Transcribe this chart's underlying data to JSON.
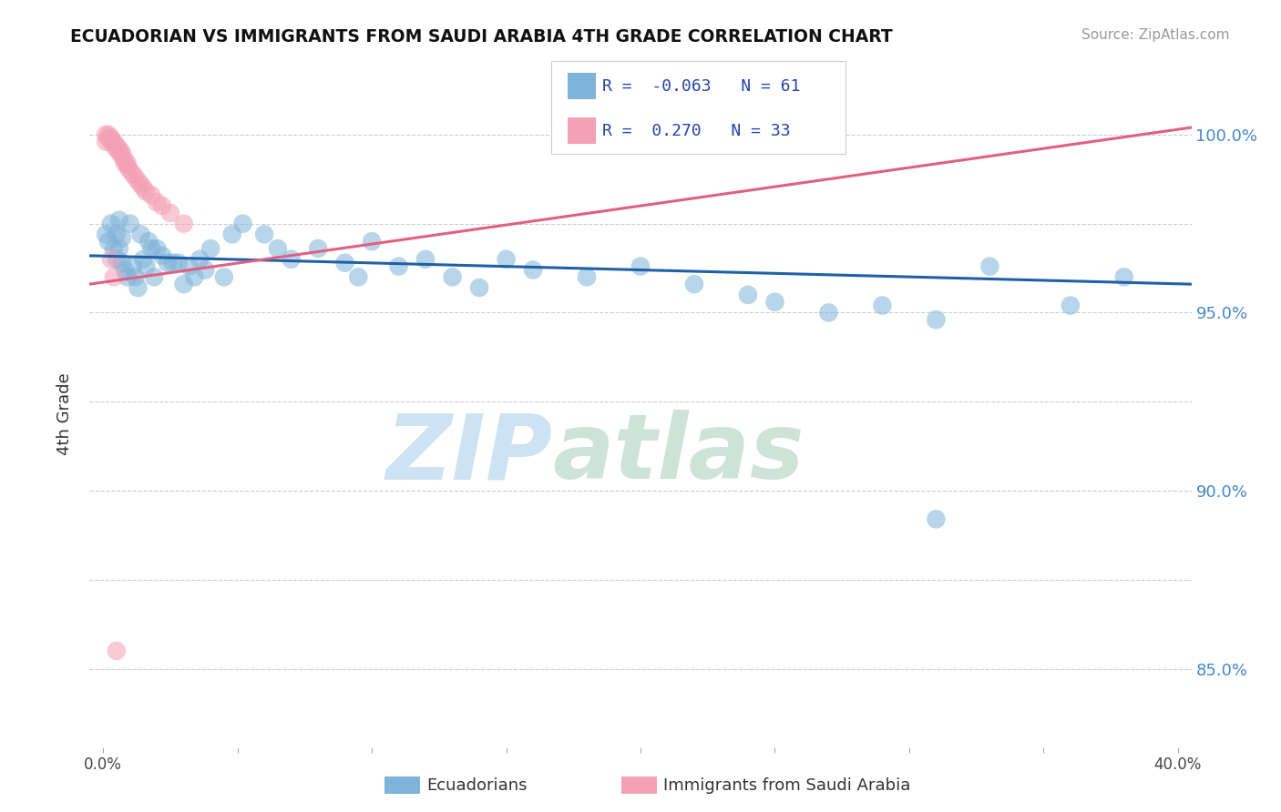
{
  "title": "ECUADORIAN VS IMMIGRANTS FROM SAUDI ARABIA 4TH GRADE CORRELATION CHART",
  "source": "Source: ZipAtlas.com",
  "xlim": [
    -0.005,
    0.405
  ],
  "ylim": [
    0.828,
    1.015
  ],
  "ylabel": "4th Grade",
  "blue_R": -0.063,
  "blue_N": 61,
  "pink_R": 0.27,
  "pink_N": 33,
  "blue_color": "#7fb3d9",
  "pink_color": "#f4a0b5",
  "blue_line_color": "#2060a8",
  "pink_line_color": "#e06080",
  "ytick_positions": [
    0.85,
    0.875,
    0.9,
    0.925,
    0.95,
    0.975,
    1.0
  ],
  "ytick_labels": [
    "85.0%",
    "",
    "90.0%",
    "",
    "95.0%",
    "",
    "100.0%"
  ],
  "blue_scatter_x": [
    0.001,
    0.002,
    0.003,
    0.004,
    0.005,
    0.005,
    0.006,
    0.006,
    0.007,
    0.007,
    0.008,
    0.009,
    0.01,
    0.011,
    0.012,
    0.013,
    0.014,
    0.015,
    0.016,
    0.017,
    0.018,
    0.019,
    0.02,
    0.022,
    0.024,
    0.026,
    0.028,
    0.03,
    0.032,
    0.034,
    0.036,
    0.038,
    0.04,
    0.045,
    0.048,
    0.052,
    0.06,
    0.065,
    0.07,
    0.08,
    0.09,
    0.095,
    0.1,
    0.11,
    0.12,
    0.13,
    0.14,
    0.15,
    0.16,
    0.18,
    0.2,
    0.22,
    0.24,
    0.25,
    0.27,
    0.29,
    0.31,
    0.33,
    0.36,
    0.38,
    0.31
  ],
  "blue_scatter_y": [
    0.972,
    0.97,
    0.975,
    0.968,
    0.965,
    0.972,
    0.968,
    0.976,
    0.964,
    0.971,
    0.962,
    0.96,
    0.975,
    0.963,
    0.96,
    0.957,
    0.972,
    0.965,
    0.963,
    0.97,
    0.968,
    0.96,
    0.968,
    0.966,
    0.964,
    0.964,
    0.964,
    0.958,
    0.963,
    0.96,
    0.965,
    0.962,
    0.968,
    0.96,
    0.972,
    0.975,
    0.972,
    0.968,
    0.965,
    0.968,
    0.964,
    0.96,
    0.97,
    0.963,
    0.965,
    0.96,
    0.957,
    0.965,
    0.962,
    0.96,
    0.963,
    0.958,
    0.955,
    0.953,
    0.95,
    0.952,
    0.948,
    0.963,
    0.952,
    0.96,
    0.892
  ],
  "pink_scatter_x": [
    0.001,
    0.001,
    0.002,
    0.002,
    0.003,
    0.003,
    0.004,
    0.004,
    0.005,
    0.005,
    0.006,
    0.006,
    0.007,
    0.007,
    0.008,
    0.008,
    0.009,
    0.009,
    0.01,
    0.011,
    0.012,
    0.013,
    0.014,
    0.015,
    0.016,
    0.018,
    0.02,
    0.022,
    0.025,
    0.03,
    0.003,
    0.004,
    0.005
  ],
  "pink_scatter_y": [
    1.0,
    0.998,
    1.0,
    0.999,
    0.999,
    0.998,
    0.998,
    0.997,
    0.997,
    0.996,
    0.996,
    0.995,
    0.995,
    0.994,
    0.993,
    0.992,
    0.992,
    0.991,
    0.99,
    0.989,
    0.988,
    0.987,
    0.986,
    0.985,
    0.984,
    0.983,
    0.981,
    0.98,
    0.978,
    0.975,
    0.965,
    0.96,
    0.855
  ],
  "blue_trend_x": [
    -0.005,
    0.405
  ],
  "blue_trend_y": [
    0.966,
    0.958
  ],
  "pink_trend_x": [
    -0.005,
    0.405
  ],
  "pink_trend_y": [
    0.958,
    1.002
  ]
}
